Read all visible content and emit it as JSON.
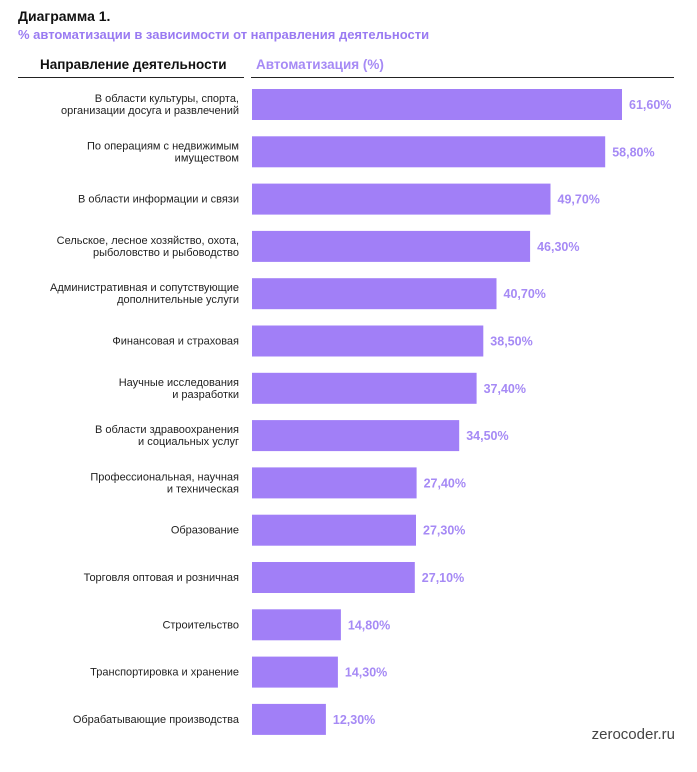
{
  "header": {
    "title": "Диаграмма 1.",
    "subtitle": "% автоматизации в зависимости от направления деятельности",
    "col_left": "Направление деятельности",
    "col_right": "Автоматизация (%)"
  },
  "watermark": "zerocoder.ru",
  "colors": {
    "bar": "#a17ff7",
    "value_text": "#a68af5",
    "subtitle": "#9a7bf2"
  },
  "chart_data": {
    "type": "bar",
    "orientation": "horizontal",
    "title": "% автоматизации в зависимости от направления деятельности",
    "xlabel": "Автоматизация (%)",
    "ylabel": "Направление деятельности",
    "xlim": [
      0,
      61.6
    ],
    "grid": false,
    "categories": [
      [
        "В области культуры, спорта,",
        "организации досуга и развлечений"
      ],
      [
        "По операциям с недвижимым",
        "имуществом"
      ],
      [
        "В области информации и связи"
      ],
      [
        "Сельское, лесное хозяйство, охота,",
        "рыболовство и рыбоводство"
      ],
      [
        "Административная и сопутствующие",
        "дополнительные услуги"
      ],
      [
        "Финансовая и страховая"
      ],
      [
        "Научные исследования",
        "и разработки"
      ],
      [
        "В области здравоохранения",
        "и социальных услуг"
      ],
      [
        "Профессиональная, научная",
        "и техническая"
      ],
      [
        "Образование"
      ],
      [
        "Торговля оптовая и розничная"
      ],
      [
        "Строительство"
      ],
      [
        "Транспортировка и хранение"
      ],
      [
        "Обрабатывающие производства"
      ]
    ],
    "values": [
      61.6,
      58.8,
      49.7,
      46.3,
      40.7,
      38.5,
      37.4,
      34.5,
      27.4,
      27.3,
      27.1,
      14.8,
      14.3,
      12.3
    ],
    "value_labels": [
      "61,60%",
      "58,80%",
      "49,70%",
      "46,30%",
      "40,70%",
      "38,50%",
      "37,40%",
      "34,50%",
      "27,40%",
      "27,30%",
      "27,10%",
      "14,80%",
      "14,30%",
      "12,30%"
    ]
  }
}
